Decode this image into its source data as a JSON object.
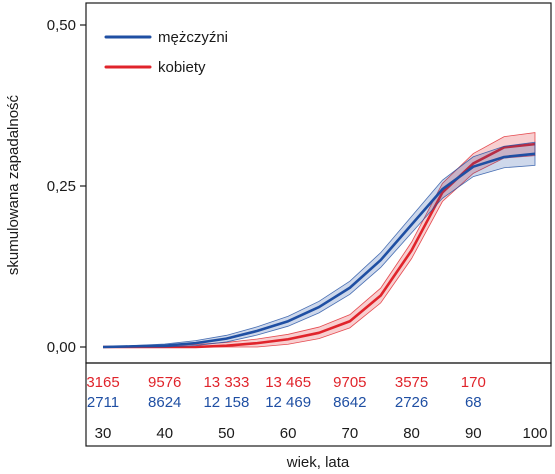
{
  "chart_data": {
    "type": "line",
    "xlabel": "wiek, lata",
    "ylabel": "skumulowana zapadalność",
    "xlim": [
      30,
      100
    ],
    "ylim": [
      0,
      0.5
    ],
    "y_ticks": [
      "0,00",
      "0,25",
      "0,50"
    ],
    "x_ticks": [
      "30",
      "40",
      "50",
      "60",
      "70",
      "80",
      "90",
      "100"
    ],
    "grid": false,
    "legend_position": "top-left",
    "colors": {
      "men": "#1f4fa3",
      "women": "#e0242b"
    },
    "series": [
      {
        "name": "mężczyźni",
        "color": "#1f4fa3",
        "x": [
          30,
          35,
          40,
          45,
          50,
          55,
          60,
          65,
          70,
          75,
          80,
          85,
          90,
          95,
          100
        ],
        "y": [
          0.0,
          0.001,
          0.002,
          0.006,
          0.013,
          0.025,
          0.04,
          0.062,
          0.092,
          0.135,
          0.19,
          0.245,
          0.28,
          0.295,
          0.3
        ]
      },
      {
        "name": "kobiety",
        "color": "#e0242b",
        "x": [
          30,
          35,
          40,
          45,
          50,
          55,
          60,
          65,
          70,
          75,
          80,
          85,
          90,
          95,
          100
        ],
        "y": [
          0.0,
          0.0,
          0.0,
          0.0,
          0.002,
          0.006,
          0.012,
          0.022,
          0.04,
          0.08,
          0.15,
          0.24,
          0.285,
          0.31,
          0.315
        ]
      }
    ],
    "at_risk": {
      "ages": [
        30,
        40,
        50,
        60,
        70,
        80,
        90,
        100
      ],
      "women": [
        "3165",
        "9576",
        "13 333",
        "13 465",
        "9705",
        "3575",
        "170"
      ],
      "men": [
        "2711",
        "8624",
        "12 158",
        "12 469",
        "8642",
        "2726",
        "68"
      ]
    }
  }
}
